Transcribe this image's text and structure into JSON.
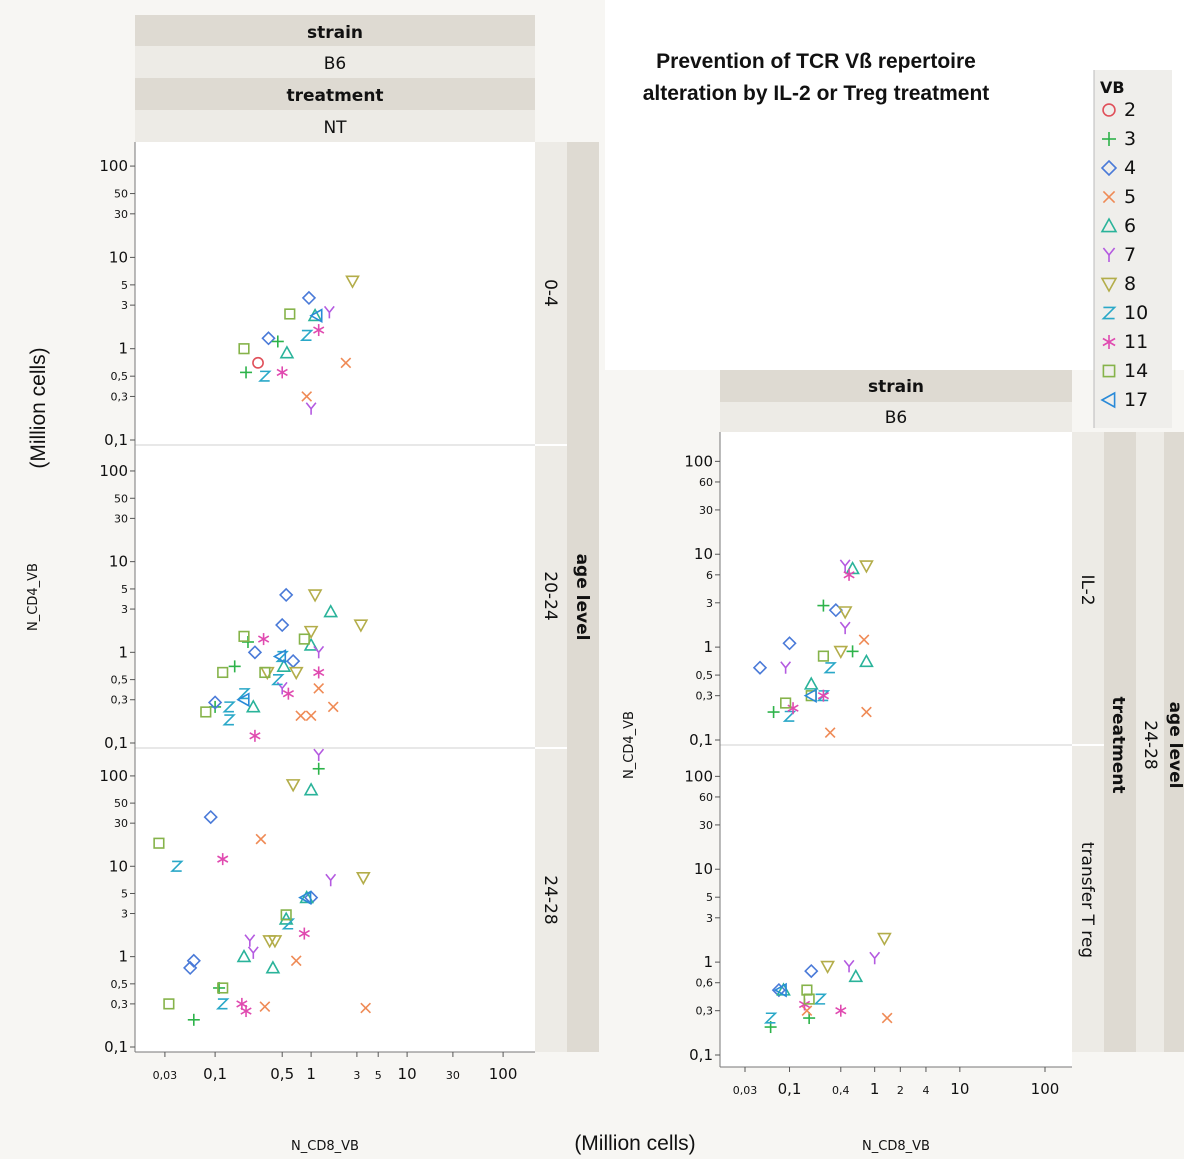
{
  "title_line1": "Prevention of TCR Vß repertoire",
  "title_line2": "alteration by IL-2 or Treg treatment",
  "x_unit": "(Million cells)",
  "y_unit": "(Million cells)",
  "colors": {
    "2": "#e0505a",
    "3": "#2db34a",
    "4": "#4a7ad8",
    "5": "#ef8a55",
    "6": "#2ab39a",
    "7": "#b45ae0",
    "8": "#b3ad4a",
    "10": "#2aa8c8",
    "11": "#e04ab0",
    "14": "#86b34a",
    "17": "#2a8ad8"
  },
  "legend": {
    "title": "VB",
    "items": [
      {
        "key": "2",
        "symbol": "circle"
      },
      {
        "key": "3",
        "symbol": "plus"
      },
      {
        "key": "4",
        "symbol": "diamond"
      },
      {
        "key": "5",
        "symbol": "x"
      },
      {
        "key": "6",
        "symbol": "triangle"
      },
      {
        "key": "7",
        "symbol": "Y"
      },
      {
        "key": "8",
        "symbol": "triangle-down"
      },
      {
        "key": "10",
        "symbol": "Z"
      },
      {
        "key": "11",
        "symbol": "asterisk"
      },
      {
        "key": "14",
        "symbol": "square"
      },
      {
        "key": "17",
        "symbol": "triangle-left"
      }
    ]
  },
  "left_panel": {
    "headers": [
      "strain",
      "B6",
      "treatment",
      "NT"
    ],
    "side_outer": "age level",
    "ylabel": "N_CD4_VB",
    "xlabel": "N_CD8_VB",
    "x_ticks": [
      "0,03",
      "0,1",
      "0,5",
      "1",
      "3",
      "5",
      "10",
      "30",
      "100"
    ],
    "y_ticks": [
      "100",
      "50",
      "30",
      "10",
      "5",
      "3",
      "1",
      "0,5",
      "0,3",
      "0,1"
    ]
  },
  "right_panel": {
    "headers": [
      "strain",
      "B6"
    ],
    "side_outer": "age level",
    "side_outer_value": "24-28",
    "side_mid": "treatment",
    "ylabel": "N_CD4_VB",
    "xlabel": "N_CD8_VB",
    "x_ticks": [
      "0,03",
      "0,1",
      "0,4",
      "1",
      "2",
      "4",
      "10",
      "100"
    ],
    "y_ticks": [
      "100",
      "60",
      "30",
      "10",
      "6",
      "3",
      "1",
      "0,5",
      "0,3",
      "0,1"
    ],
    "y_ticks_bottom": [
      "100",
      "60",
      "30",
      "10",
      "5",
      "3",
      "1",
      "0,6",
      "0,3",
      "0,1"
    ]
  },
  "chart_data": [
    {
      "type": "scatter",
      "facet": {
        "strain": "B6",
        "treatment": "NT",
        "age_level": "0-4"
      },
      "xlabel": "N_CD8_VB",
      "ylabel": "N_CD4_VB",
      "xscale": "log",
      "yscale": "log",
      "xlim": [
        0.02,
        150
      ],
      "ylim": [
        0.1,
        150
      ],
      "points": [
        {
          "vb": "2",
          "x": 0.28,
          "y": 0.7
        },
        {
          "vb": "3",
          "x": 0.21,
          "y": 0.55
        },
        {
          "vb": "4",
          "x": 0.36,
          "y": 1.3
        },
        {
          "vb": "4",
          "x": 0.95,
          "y": 3.6
        },
        {
          "vb": "5",
          "x": 0.9,
          "y": 0.3
        },
        {
          "vb": "5",
          "x": 2.3,
          "y": 0.7
        },
        {
          "vb": "6",
          "x": 0.56,
          "y": 0.9
        },
        {
          "vb": "6",
          "x": 1.1,
          "y": 2.3
        },
        {
          "vb": "7",
          "x": 1.55,
          "y": 2.5
        },
        {
          "vb": "7",
          "x": 1.0,
          "y": 0.22
        },
        {
          "vb": "8",
          "x": 2.7,
          "y": 5.5
        },
        {
          "vb": "10",
          "x": 0.33,
          "y": 0.5
        },
        {
          "vb": "10",
          "x": 0.9,
          "y": 1.4
        },
        {
          "vb": "11",
          "x": 0.5,
          "y": 0.55
        },
        {
          "vb": "11",
          "x": 1.2,
          "y": 1.6
        },
        {
          "vb": "14",
          "x": 0.2,
          "y": 1.0
        },
        {
          "vb": "14",
          "x": 0.6,
          "y": 2.4
        },
        {
          "vb": "3",
          "x": 0.45,
          "y": 1.2
        },
        {
          "vb": "17",
          "x": 1.15,
          "y": 2.3
        }
      ]
    },
    {
      "type": "scatter",
      "facet": {
        "strain": "B6",
        "treatment": "NT",
        "age_level": "20-24"
      },
      "xlabel": "N_CD8_VB",
      "ylabel": "N_CD4_VB",
      "xscale": "log",
      "yscale": "log",
      "xlim": [
        0.02,
        150
      ],
      "ylim": [
        0.1,
        150
      ],
      "points": [
        {
          "vb": "3",
          "x": 0.1,
          "y": 0.25
        },
        {
          "vb": "3",
          "x": 0.16,
          "y": 0.7
        },
        {
          "vb": "3",
          "x": 0.22,
          "y": 1.3
        },
        {
          "vb": "4",
          "x": 0.1,
          "y": 0.28
        },
        {
          "vb": "4",
          "x": 0.26,
          "y": 1.0
        },
        {
          "vb": "4",
          "x": 0.55,
          "y": 4.3
        },
        {
          "vb": "4",
          "x": 0.5,
          "y": 2.0
        },
        {
          "vb": "4",
          "x": 0.65,
          "y": 0.8
        },
        {
          "vb": "5",
          "x": 0.78,
          "y": 0.2
        },
        {
          "vb": "5",
          "x": 1.0,
          "y": 0.2
        },
        {
          "vb": "5",
          "x": 1.2,
          "y": 0.4
        },
        {
          "vb": "5",
          "x": 1.7,
          "y": 0.25
        },
        {
          "vb": "6",
          "x": 0.25,
          "y": 0.25
        },
        {
          "vb": "6",
          "x": 0.52,
          "y": 0.7
        },
        {
          "vb": "6",
          "x": 1.0,
          "y": 1.2
        },
        {
          "vb": "6",
          "x": 1.6,
          "y": 2.8
        },
        {
          "vb": "7",
          "x": 0.5,
          "y": 0.4
        },
        {
          "vb": "7",
          "x": 1.2,
          "y": 1.0
        },
        {
          "vb": "8",
          "x": 0.35,
          "y": 0.6
        },
        {
          "vb": "8",
          "x": 0.7,
          "y": 0.6
        },
        {
          "vb": "8",
          "x": 1.1,
          "y": 4.3
        },
        {
          "vb": "8",
          "x": 1.0,
          "y": 1.7
        },
        {
          "vb": "8",
          "x": 3.3,
          "y": 2.0
        },
        {
          "vb": "10",
          "x": 0.14,
          "y": 0.18
        },
        {
          "vb": "10",
          "x": 0.14,
          "y": 0.25
        },
        {
          "vb": "10",
          "x": 0.2,
          "y": 0.35
        },
        {
          "vb": "10",
          "x": 0.45,
          "y": 0.5
        },
        {
          "vb": "10",
          "x": 0.5,
          "y": 0.9
        },
        {
          "vb": "11",
          "x": 0.26,
          "y": 0.12
        },
        {
          "vb": "11",
          "x": 0.32,
          "y": 1.4
        },
        {
          "vb": "11",
          "x": 0.58,
          "y": 0.35
        },
        {
          "vb": "11",
          "x": 1.2,
          "y": 0.6
        },
        {
          "vb": "14",
          "x": 0.08,
          "y": 0.22
        },
        {
          "vb": "14",
          "x": 0.12,
          "y": 0.6
        },
        {
          "vb": "14",
          "x": 0.2,
          "y": 1.5
        },
        {
          "vb": "14",
          "x": 0.33,
          "y": 0.6
        },
        {
          "vb": "14",
          "x": 0.85,
          "y": 1.4
        },
        {
          "vb": "17",
          "x": 0.2,
          "y": 0.3
        },
        {
          "vb": "17",
          "x": 0.48,
          "y": 0.9
        }
      ]
    },
    {
      "type": "scatter",
      "facet": {
        "strain": "B6",
        "treatment": "NT",
        "age_level": "24-28"
      },
      "xlabel": "N_CD8_VB",
      "ylabel": "N_CD4_VB",
      "xscale": "log",
      "yscale": "log",
      "xlim": [
        0.02,
        150
      ],
      "ylim": [
        0.1,
        150
      ],
      "points": [
        {
          "vb": "3",
          "x": 0.06,
          "y": 0.2
        },
        {
          "vb": "3",
          "x": 0.11,
          "y": 0.45
        },
        {
          "vb": "3",
          "x": 1.2,
          "y": 120
        },
        {
          "vb": "4",
          "x": 0.055,
          "y": 0.75
        },
        {
          "vb": "4",
          "x": 0.06,
          "y": 0.9
        },
        {
          "vb": "4",
          "x": 0.09,
          "y": 35
        },
        {
          "vb": "4",
          "x": 1.0,
          "y": 4.5
        },
        {
          "vb": "5",
          "x": 0.3,
          "y": 20
        },
        {
          "vb": "5",
          "x": 0.33,
          "y": 0.28
        },
        {
          "vb": "5",
          "x": 0.7,
          "y": 0.9
        },
        {
          "vb": "5",
          "x": 3.7,
          "y": 0.27
        },
        {
          "vb": "6",
          "x": 0.2,
          "y": 1.0
        },
        {
          "vb": "6",
          "x": 0.4,
          "y": 0.75
        },
        {
          "vb": "6",
          "x": 0.55,
          "y": 2.6
        },
        {
          "vb": "6",
          "x": 1.0,
          "y": 70
        },
        {
          "vb": "6",
          "x": 0.9,
          "y": 4.5
        },
        {
          "vb": "7",
          "x": 0.23,
          "y": 1.5
        },
        {
          "vb": "7",
          "x": 0.25,
          "y": 1.1
        },
        {
          "vb": "7",
          "x": 1.6,
          "y": 7.0
        },
        {
          "vb": "7",
          "x": 1.2,
          "y": 170
        },
        {
          "vb": "8",
          "x": 0.37,
          "y": 1.5
        },
        {
          "vb": "8",
          "x": 0.42,
          "y": 1.5
        },
        {
          "vb": "8",
          "x": 0.65,
          "y": 80
        },
        {
          "vb": "8",
          "x": 3.5,
          "y": 7.5
        },
        {
          "vb": "10",
          "x": 0.04,
          "y": 10
        },
        {
          "vb": "10",
          "x": 0.12,
          "y": 0.3
        },
        {
          "vb": "10",
          "x": 0.58,
          "y": 2.3
        },
        {
          "vb": "11",
          "x": 0.12,
          "y": 12
        },
        {
          "vb": "11",
          "x": 0.19,
          "y": 0.3
        },
        {
          "vb": "11",
          "x": 0.21,
          "y": 0.25
        },
        {
          "vb": "11",
          "x": 0.85,
          "y": 1.8
        },
        {
          "vb": "14",
          "x": 0.026,
          "y": 18
        },
        {
          "vb": "14",
          "x": 0.033,
          "y": 0.3
        },
        {
          "vb": "14",
          "x": 0.12,
          "y": 0.45
        },
        {
          "vb": "14",
          "x": 0.55,
          "y": 2.9
        },
        {
          "vb": "17",
          "x": 0.88,
          "y": 4.5
        }
      ]
    },
    {
      "type": "scatter",
      "facet": {
        "strain": "B6",
        "treatment": "IL-2",
        "age_level": "24-28"
      },
      "xlabel": "N_CD8_VB",
      "ylabel": "N_CD4_VB",
      "xscale": "log",
      "yscale": "log",
      "xlim": [
        0.02,
        150
      ],
      "ylim": [
        0.1,
        150
      ],
      "points": [
        {
          "vb": "3",
          "x": 0.065,
          "y": 0.2
        },
        {
          "vb": "3",
          "x": 0.25,
          "y": 2.8
        },
        {
          "vb": "3",
          "x": 0.55,
          "y": 0.9
        },
        {
          "vb": "4",
          "x": 0.045,
          "y": 0.6
        },
        {
          "vb": "4",
          "x": 0.1,
          "y": 1.1
        },
        {
          "vb": "4",
          "x": 0.35,
          "y": 2.5
        },
        {
          "vb": "5",
          "x": 0.3,
          "y": 0.12
        },
        {
          "vb": "5",
          "x": 0.75,
          "y": 1.2
        },
        {
          "vb": "5",
          "x": 0.8,
          "y": 0.2
        },
        {
          "vb": "6",
          "x": 0.18,
          "y": 0.4
        },
        {
          "vb": "6",
          "x": 0.55,
          "y": 7.0
        },
        {
          "vb": "6",
          "x": 0.8,
          "y": 0.7
        },
        {
          "vb": "7",
          "x": 0.09,
          "y": 0.6
        },
        {
          "vb": "7",
          "x": 0.45,
          "y": 7.5
        },
        {
          "vb": "7",
          "x": 0.45,
          "y": 1.6
        },
        {
          "vb": "8",
          "x": 0.4,
          "y": 0.9
        },
        {
          "vb": "8",
          "x": 0.45,
          "y": 2.4
        },
        {
          "vb": "8",
          "x": 0.8,
          "y": 7.5
        },
        {
          "vb": "10",
          "x": 0.1,
          "y": 0.18
        },
        {
          "vb": "10",
          "x": 0.25,
          "y": 0.3
        },
        {
          "vb": "10",
          "x": 0.3,
          "y": 0.6
        },
        {
          "vb": "11",
          "x": 0.11,
          "y": 0.22
        },
        {
          "vb": "11",
          "x": 0.25,
          "y": 0.3
        },
        {
          "vb": "11",
          "x": 0.5,
          "y": 6.0
        },
        {
          "vb": "14",
          "x": 0.09,
          "y": 0.25
        },
        {
          "vb": "14",
          "x": 0.18,
          "y": 0.3
        },
        {
          "vb": "14",
          "x": 0.25,
          "y": 0.8
        },
        {
          "vb": "17",
          "x": 0.18,
          "y": 0.3
        }
      ]
    },
    {
      "type": "scatter",
      "facet": {
        "strain": "B6",
        "treatment": "transfer T reg",
        "age_level": "24-28"
      },
      "xlabel": "N_CD8_VB",
      "ylabel": "N_CD4_VB",
      "xscale": "log",
      "yscale": "log",
      "xlim": [
        0.02,
        150
      ],
      "ylim": [
        0.1,
        150
      ],
      "points": [
        {
          "vb": "3",
          "x": 0.06,
          "y": 0.2
        },
        {
          "vb": "3",
          "x": 0.17,
          "y": 0.25
        },
        {
          "vb": "4",
          "x": 0.075,
          "y": 0.5
        },
        {
          "vb": "4",
          "x": 0.18,
          "y": 0.8
        },
        {
          "vb": "5",
          "x": 0.16,
          "y": 0.3
        },
        {
          "vb": "5",
          "x": 1.4,
          "y": 0.25
        },
        {
          "vb": "6",
          "x": 0.085,
          "y": 0.5
        },
        {
          "vb": "6",
          "x": 0.6,
          "y": 0.7
        },
        {
          "vb": "7",
          "x": 0.5,
          "y": 0.9
        },
        {
          "vb": "7",
          "x": 1.0,
          "y": 1.1
        },
        {
          "vb": "8",
          "x": 0.28,
          "y": 0.9
        },
        {
          "vb": "8",
          "x": 1.3,
          "y": 1.8
        },
        {
          "vb": "10",
          "x": 0.06,
          "y": 0.25
        },
        {
          "vb": "10",
          "x": 0.23,
          "y": 0.4
        },
        {
          "vb": "11",
          "x": 0.15,
          "y": 0.35
        },
        {
          "vb": "11",
          "x": 0.4,
          "y": 0.3
        },
        {
          "vb": "14",
          "x": 0.16,
          "y": 0.5
        },
        {
          "vb": "14",
          "x": 0.17,
          "y": 0.4
        },
        {
          "vb": "17",
          "x": 0.08,
          "y": 0.5
        }
      ]
    }
  ]
}
